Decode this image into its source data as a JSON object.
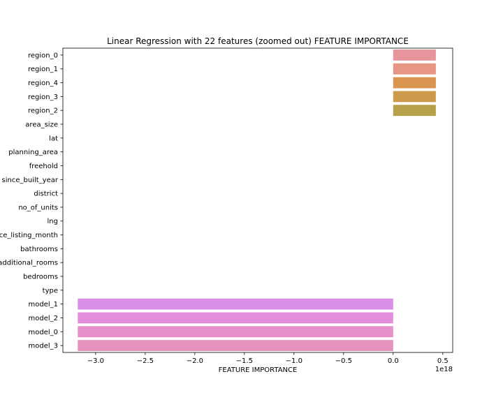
{
  "chart_data": {
    "type": "bar",
    "orientation": "horizontal",
    "title": "Linear Regression with 22 features (zoomed out) FEATURE IMPORTANCE",
    "xlabel": "FEATURE IMPORTANCE",
    "ylabel": "",
    "x_offset_label": "1e18",
    "xlim": [
      -3.33,
      0.6
    ],
    "x_ticks": [
      -3.0,
      -2.5,
      -2.0,
      -1.5,
      -1.0,
      -0.5,
      0.0,
      0.5
    ],
    "x_tick_labels": [
      "−3.0",
      "−2.5",
      "−2.0",
      "−1.5",
      "−1.0",
      "−0.5",
      "0.0",
      "0.5"
    ],
    "grid": false,
    "legend": "none",
    "categories": [
      "region_0",
      "region_1",
      "region_4",
      "region_3",
      "region_2",
      "area_size",
      "lat",
      "planning_area",
      "freehold",
      "since_built_year",
      "district",
      "no_of_units",
      "lng",
      "since_listing_month",
      "bathrooms",
      "additional_rooms",
      "bedrooms",
      "type",
      "model_1",
      "model_2",
      "model_0",
      "model_3"
    ],
    "values": [
      0.43,
      0.43,
      0.43,
      0.43,
      0.43,
      0,
      0,
      0,
      0,
      0,
      0,
      0,
      0,
      0,
      0,
      0,
      0,
      0,
      -3.18,
      -3.18,
      -3.18,
      -3.18
    ],
    "colors": [
      "#e8949d",
      "#e79683",
      "#d9944f",
      "#cd9a4c",
      "#b8a04a",
      "#9fa94a",
      "#7aae49",
      "#48b249",
      "#4cb38c",
      "#4cb2a6",
      "#4ab1b3",
      "#4bb1c3",
      "#4fb0d3",
      "#63a9df",
      "#8ea0e6",
      "#b390ea",
      "#c88bea",
      "#dc83e8",
      "#d98fe6",
      "#e48ddd",
      "#e68fc8",
      "#e592bd"
    ]
  }
}
